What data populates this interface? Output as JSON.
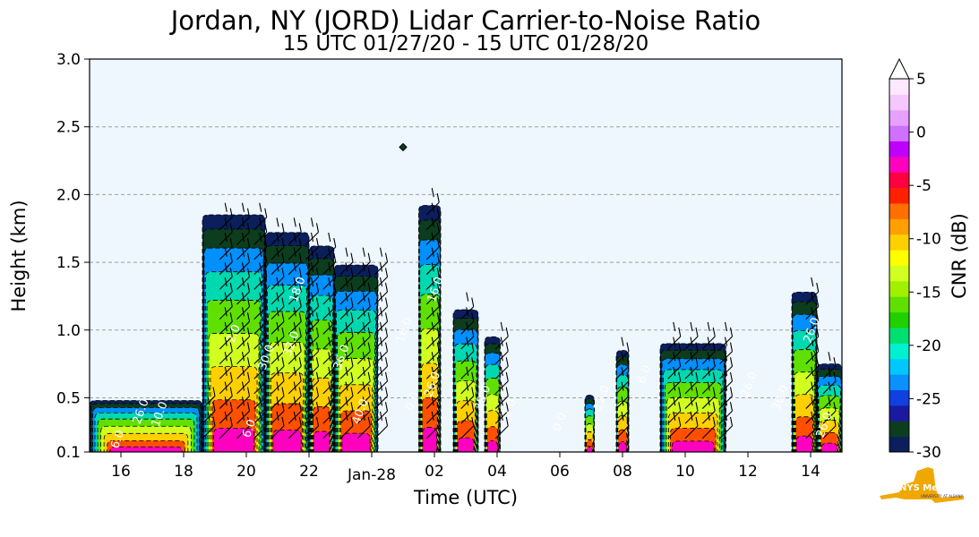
{
  "chart_data": {
    "type": "heatmap",
    "title": "Jordan, NY (JORD) Lidar Carrier-to-Noise Ratio",
    "subtitle": "15 UTC 01/27/20 - 15 UTC 01/28/20",
    "xlabel": "Time (UTC)",
    "ylabel": "Height (km)",
    "x_ticks": [
      "16",
      "18",
      "20",
      "22",
      "Jan-28",
      "02",
      "04",
      "06",
      "08",
      "10",
      "12",
      "14"
    ],
    "y_ticks": [
      "0.1",
      "0.5",
      "1.0",
      "1.5",
      "2.0",
      "2.5",
      "3.0"
    ],
    "ylim": [
      0.1,
      3.0
    ],
    "xlim_hours_since_15utc": [
      0,
      24
    ],
    "grid": "horizontal dashed",
    "colorbar": {
      "label": "CNR (dB)",
      "ticks": [
        "5",
        "0",
        "-5",
        "-10",
        "-15",
        "-20",
        "-25",
        "-30"
      ],
      "range": [
        -30,
        5
      ],
      "extend": "max",
      "colors": [
        "#0a1f5c",
        "#0b3d1e",
        "#1a1aa0",
        "#1040e0",
        "#0a90ff",
        "#00c8ff",
        "#00f0d0",
        "#00e070",
        "#20d000",
        "#60e000",
        "#a0f000",
        "#d0ff20",
        "#ffff00",
        "#ffd000",
        "#ffa000",
        "#ff7000",
        "#ff2000",
        "#ff0040",
        "#ff00c0",
        "#c000ff",
        "#d070ff",
        "#e8a0ff",
        "#f4c8ff",
        "#fde8ff"
      ]
    },
    "contour_labels": [
      "6.0",
      "26.0",
      "10.0",
      "6.0",
      "18.0",
      "2.0",
      "30.0",
      "36.0",
      "32.0",
      "40.0",
      "16.0",
      "0.0",
      "26.0",
      "38.0",
      "2.0",
      "0.0",
      "12.0",
      "6.0",
      "26.0",
      "30.0",
      "26.0",
      "26.0",
      "16.0"
    ],
    "cloud_columns": [
      {
        "x": [
          0,
          3.6
        ],
        "top": 0.48
      },
      {
        "x": [
          3.6,
          5.6
        ],
        "top": 1.85
      },
      {
        "x": [
          5.6,
          7.0
        ],
        "top": 1.72
      },
      {
        "x": [
          7.0,
          7.8
        ],
        "top": 1.62
      },
      {
        "x": [
          7.8,
          9.2
        ],
        "top": 1.48
      },
      {
        "x": [
          10.5,
          11.2
        ],
        "top": 1.92
      },
      {
        "x": [
          11.6,
          12.4
        ],
        "top": 1.15
      },
      {
        "x": [
          12.6,
          13.1
        ],
        "top": 0.95
      },
      {
        "x": [
          15.8,
          16.1
        ],
        "top": 0.52
      },
      {
        "x": [
          16.8,
          17.2
        ],
        "top": 0.85
      },
      {
        "x": [
          18.2,
          20.3
        ],
        "top": 0.9
      },
      {
        "x": [
          22.4,
          23.2
        ],
        "top": 1.28
      },
      {
        "x": [
          23.2,
          24.0
        ],
        "top": 0.75
      }
    ]
  },
  "logo": {
    "text": "NYS Mesonet",
    "subtext": "UNIVERSITY AT ALBANY"
  },
  "colors": {
    "plot_bg": "#eef6fe",
    "grid": "#a0a0a0"
  }
}
